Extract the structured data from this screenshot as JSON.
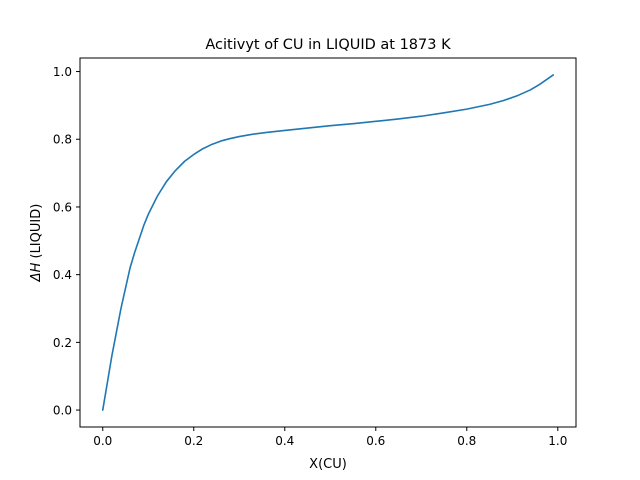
{
  "chart_data": {
    "type": "line",
    "title": "Acitivyt of CU in LIQUID at 1873 K",
    "xlabel": "X(CU)",
    "ylabel_symbol": "ΔH",
    "ylabel_suffix": " (LIQUID)",
    "xlim": [
      -0.05,
      1.04
    ],
    "ylim": [
      -0.05,
      1.04
    ],
    "xticks": [
      0.0,
      0.2,
      0.4,
      0.6,
      0.8,
      1.0
    ],
    "xtick_labels": [
      "0.0",
      "0.2",
      "0.4",
      "0.6",
      "0.8",
      "1.0"
    ],
    "yticks": [
      0.0,
      0.2,
      0.4,
      0.6,
      0.8,
      1.0
    ],
    "ytick_labels": [
      "0.0",
      "0.2",
      "0.4",
      "0.6",
      "0.8",
      "1.0"
    ],
    "grid": false,
    "legend": "none",
    "series": [
      {
        "color": "#1f77b4",
        "x": [
          0.0,
          0.01,
          0.02,
          0.03,
          0.04,
          0.05,
          0.06,
          0.07,
          0.08,
          0.09,
          0.1,
          0.12,
          0.14,
          0.16,
          0.18,
          0.2,
          0.22,
          0.24,
          0.26,
          0.28,
          0.3,
          0.33,
          0.36,
          0.4,
          0.45,
          0.5,
          0.55,
          0.6,
          0.65,
          0.7,
          0.75,
          0.8,
          0.85,
          0.88,
          0.91,
          0.94,
          0.96,
          0.99
        ],
        "y": [
          0.0,
          0.08,
          0.16,
          0.23,
          0.3,
          0.36,
          0.42,
          0.465,
          0.505,
          0.545,
          0.578,
          0.632,
          0.675,
          0.708,
          0.735,
          0.755,
          0.772,
          0.785,
          0.795,
          0.802,
          0.808,
          0.815,
          0.82,
          0.826,
          0.833,
          0.84,
          0.846,
          0.853,
          0.86,
          0.868,
          0.878,
          0.889,
          0.903,
          0.914,
          0.928,
          0.946,
          0.962,
          0.99
        ]
      }
    ]
  }
}
